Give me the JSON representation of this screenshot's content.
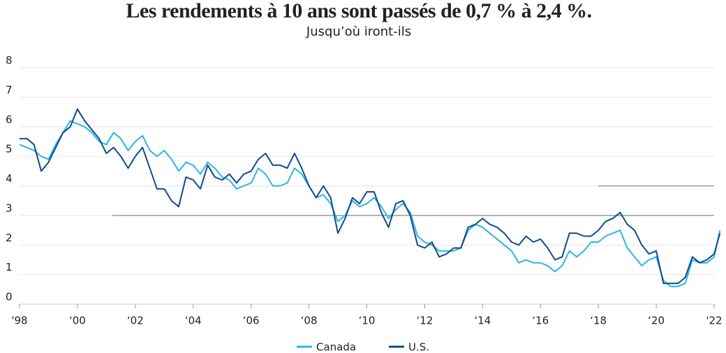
{
  "chart_data": {
    "type": "line",
    "title": "Les rendements à 10 ans sont passés de 0,7 % à 2,4 %.",
    "subtitle": "Jusqu’où iront-ils",
    "x": [
      1998,
      1998.25,
      1998.5,
      1998.75,
      1999,
      1999.25,
      1999.5,
      1999.75,
      2000,
      2000.25,
      2000.5,
      2000.75,
      2001,
      2001.25,
      2001.5,
      2001.75,
      2002,
      2002.25,
      2002.5,
      2002.75,
      2003,
      2003.25,
      2003.5,
      2003.75,
      2004,
      2004.25,
      2004.5,
      2004.75,
      2005,
      2005.25,
      2005.5,
      2005.75,
      2006,
      2006.25,
      2006.5,
      2006.75,
      2007,
      2007.25,
      2007.5,
      2007.75,
      2008,
      2008.25,
      2008.5,
      2008.75,
      2009,
      2009.25,
      2009.5,
      2009.75,
      2010,
      2010.25,
      2010.5,
      2010.75,
      2011,
      2011.25,
      2011.5,
      2011.75,
      2012,
      2012.25,
      2012.5,
      2012.75,
      2013,
      2013.25,
      2013.5,
      2013.75,
      2014,
      2014.25,
      2014.5,
      2014.75,
      2015,
      2015.25,
      2015.5,
      2015.75,
      2016,
      2016.25,
      2016.5,
      2016.75,
      2017,
      2017.25,
      2017.5,
      2017.75,
      2018,
      2018.25,
      2018.5,
      2018.75,
      2019,
      2019.25,
      2019.5,
      2019.75,
      2020,
      2020.25,
      2020.5,
      2020.75,
      2021,
      2021.25,
      2021.5,
      2021.75,
      2022,
      2022.2
    ],
    "series": [
      {
        "name": "Canada",
        "color": "#2bb5e6",
        "values": [
          5.4,
          5.3,
          5.2,
          5.0,
          4.9,
          5.4,
          5.8,
          6.2,
          6.1,
          6.0,
          5.8,
          5.5,
          5.4,
          5.8,
          5.6,
          5.2,
          5.5,
          5.7,
          5.2,
          5.0,
          5.2,
          4.9,
          4.5,
          4.8,
          4.7,
          4.4,
          4.8,
          4.6,
          4.3,
          4.2,
          3.9,
          4.0,
          4.1,
          4.6,
          4.4,
          4.0,
          4.0,
          4.1,
          4.6,
          4.4,
          4.0,
          3.6,
          3.7,
          3.4,
          2.8,
          3.0,
          3.5,
          3.3,
          3.4,
          3.6,
          3.3,
          2.9,
          3.2,
          3.4,
          3.1,
          2.3,
          2.1,
          2.0,
          1.8,
          1.8,
          1.8,
          1.9,
          2.5,
          2.7,
          2.6,
          2.4,
          2.2,
          2.0,
          1.8,
          1.4,
          1.5,
          1.4,
          1.4,
          1.3,
          1.1,
          1.3,
          1.8,
          1.6,
          1.8,
          2.1,
          2.1,
          2.3,
          2.4,
          2.5,
          1.9,
          1.6,
          1.3,
          1.5,
          1.6,
          0.8,
          0.6,
          0.6,
          0.7,
          1.5,
          1.4,
          1.4,
          1.6,
          2.5
        ]
      },
      {
        "name": "U.S.",
        "color": "#0e4a8e",
        "values": [
          5.6,
          5.6,
          5.4,
          4.5,
          4.8,
          5.3,
          5.8,
          6.0,
          6.6,
          6.2,
          5.9,
          5.6,
          5.1,
          5.3,
          5.0,
          4.6,
          5.0,
          5.3,
          4.6,
          3.9,
          3.9,
          3.5,
          3.3,
          4.3,
          4.2,
          3.9,
          4.7,
          4.3,
          4.2,
          4.4,
          4.1,
          4.4,
          4.5,
          4.9,
          5.1,
          4.7,
          4.7,
          4.6,
          5.1,
          4.6,
          4.0,
          3.6,
          4.0,
          3.6,
          2.4,
          2.9,
          3.6,
          3.4,
          3.8,
          3.8,
          3.1,
          2.6,
          3.4,
          3.5,
          3.0,
          2.0,
          1.9,
          2.1,
          1.6,
          1.7,
          1.9,
          1.9,
          2.6,
          2.7,
          2.9,
          2.7,
          2.6,
          2.4,
          2.1,
          2.0,
          2.3,
          2.1,
          2.2,
          1.9,
          1.5,
          1.6,
          2.4,
          2.4,
          2.3,
          2.3,
          2.5,
          2.8,
          2.9,
          3.1,
          2.7,
          2.5,
          2.0,
          1.7,
          1.8,
          0.7,
          0.7,
          0.7,
          0.9,
          1.6,
          1.4,
          1.5,
          1.7,
          2.4
        ]
      }
    ],
    "reference_lines": [
      {
        "value": 3,
        "x": [
          2001.2,
          2022
        ]
      },
      {
        "value": 4,
        "x": [
          2018,
          2022
        ]
      }
    ],
    "xlim": [
      1998,
      2022
    ],
    "xticks": [
      {
        "value": 1998,
        "label": "'98"
      },
      {
        "value": 2000,
        "label": "‘00"
      },
      {
        "value": 2002,
        "label": "‘02"
      },
      {
        "value": 2004,
        "label": "‘04"
      },
      {
        "value": 2006,
        "label": "‘06"
      },
      {
        "value": 2008,
        "label": "‘08"
      },
      {
        "value": 2010,
        "label": "‘10"
      },
      {
        "value": 2012,
        "label": "‘12"
      },
      {
        "value": 2014,
        "label": "‘14"
      },
      {
        "value": 2016,
        "label": "‘16"
      },
      {
        "value": 2018,
        "label": "‘18"
      },
      {
        "value": 2020,
        "label": "‘20"
      },
      {
        "value": 2022,
        "label": "'22"
      }
    ],
    "ylim": [
      0,
      8
    ],
    "yticks": [
      0,
      1,
      2,
      3,
      4,
      5,
      6,
      7,
      8
    ],
    "grid": true
  }
}
